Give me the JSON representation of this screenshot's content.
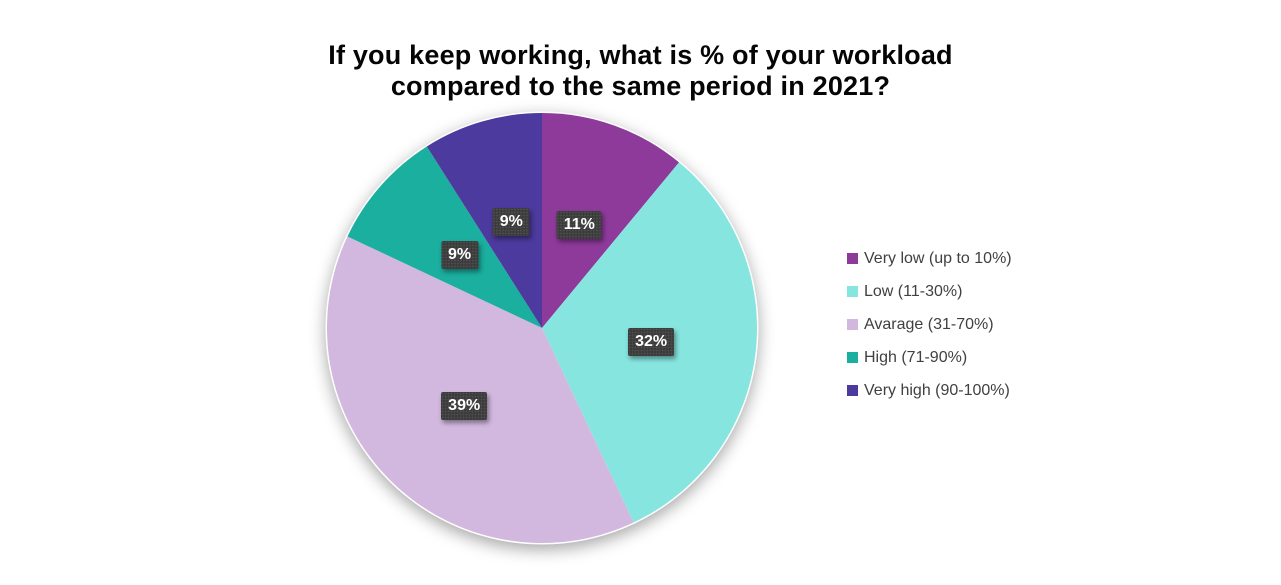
{
  "title": {
    "line1": "If you keep working, what is % of your workload",
    "line2": "compared to the same period in 2021?"
  },
  "chart_data": {
    "type": "pie",
    "title": "If you keep working, what is % of your workload compared to the same period in 2021?",
    "labels": [
      "Very low (up to 10%)",
      "Low (11-30%)",
      "Avarage (31-70%)",
      "High (71-90%)",
      "Very high (90-100%)"
    ],
    "values": [
      11,
      32,
      39,
      9,
      9
    ],
    "data_labels": [
      "11%",
      "32%",
      "39%",
      "9%",
      "9%"
    ],
    "colors": [
      "#8E3A9B",
      "#87E5E0",
      "#D2B8DF",
      "#1AAF9F",
      "#4D3A9E"
    ],
    "start_angle_deg": 0,
    "direction": "clockwise",
    "legend_position": "right",
    "data_label_background": "#3B3B3B",
    "data_label_text_color": "#FFFFFF",
    "legend_text_color": "#404040"
  }
}
